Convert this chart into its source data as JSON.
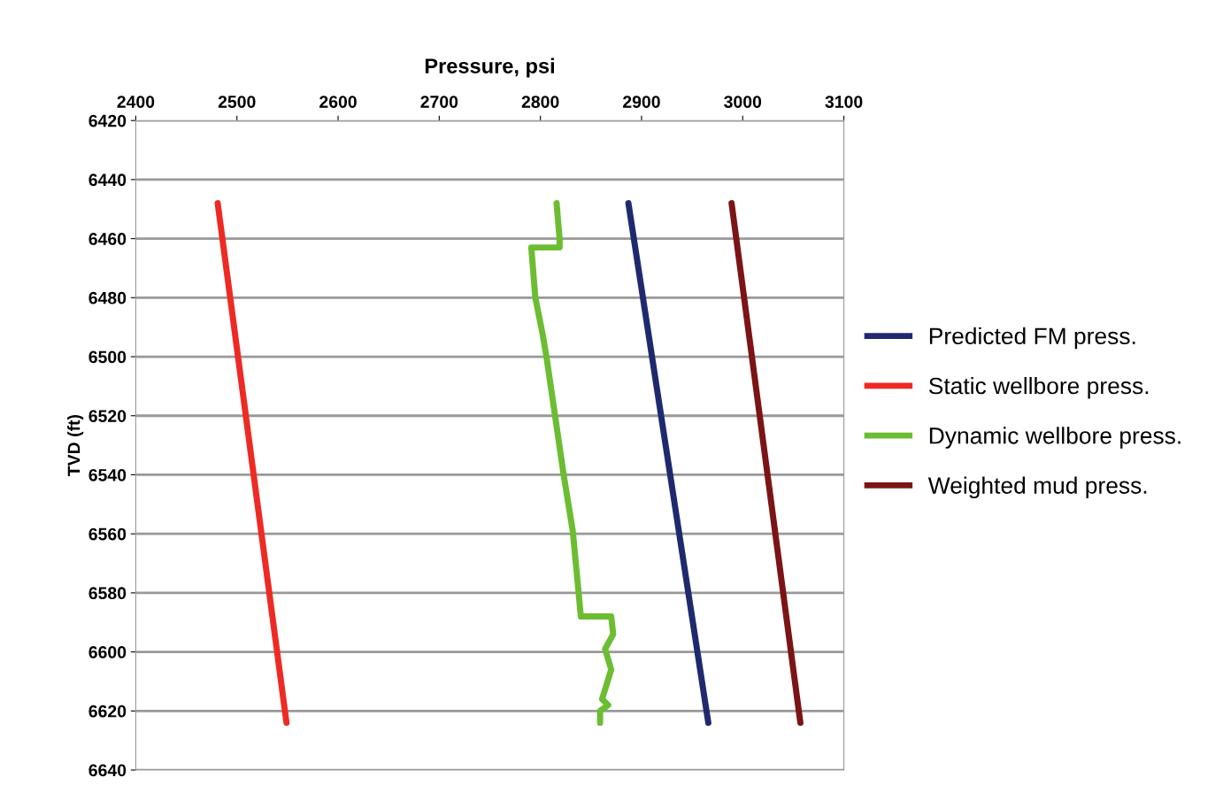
{
  "chart_data": {
    "type": "line",
    "xlabel": "Pressure, psi",
    "ylabel": "TVD (ft)",
    "xlim": [
      2400,
      3100
    ],
    "xticks": [
      2400,
      2500,
      2600,
      2700,
      2800,
      2900,
      3000,
      3100
    ],
    "ylim": [
      6640,
      6420
    ],
    "yticks": [
      6420,
      6440,
      6460,
      6480,
      6500,
      6520,
      6540,
      6560,
      6580,
      6600,
      6620,
      6640
    ],
    "grid": "y",
    "legend": "right",
    "marker": "none",
    "line_style": "solid",
    "series": [
      {
        "name": "Predicted FM press.",
        "color": "#1f2a6e",
        "x": [
          2887,
          2966
        ],
        "values": [
          6448,
          6624
        ]
      },
      {
        "name": "Static wellbore press.",
        "color": "#ee2a24",
        "x": [
          2481,
          2549
        ],
        "values": [
          6448,
          6624
        ]
      },
      {
        "name": "Dynamic wellbore press.",
        "color": "#6cbd32",
        "x": [
          2816,
          2819,
          2819,
          2791,
          2795,
          2802,
          2806,
          2823,
          2832,
          2840,
          2870,
          2872,
          2864,
          2870,
          2861,
          2867,
          2859,
          2859
        ],
        "values": [
          6448,
          6460,
          6463,
          6463,
          6480,
          6492,
          6500,
          6540,
          6559,
          6588,
          6588,
          6594,
          6599,
          6606,
          6616,
          6618,
          6620,
          6624
        ]
      },
      {
        "name": "Weighted mud press.",
        "color": "#7b1416",
        "x": [
          2989,
          3057
        ],
        "values": [
          6448,
          6624
        ]
      }
    ]
  }
}
